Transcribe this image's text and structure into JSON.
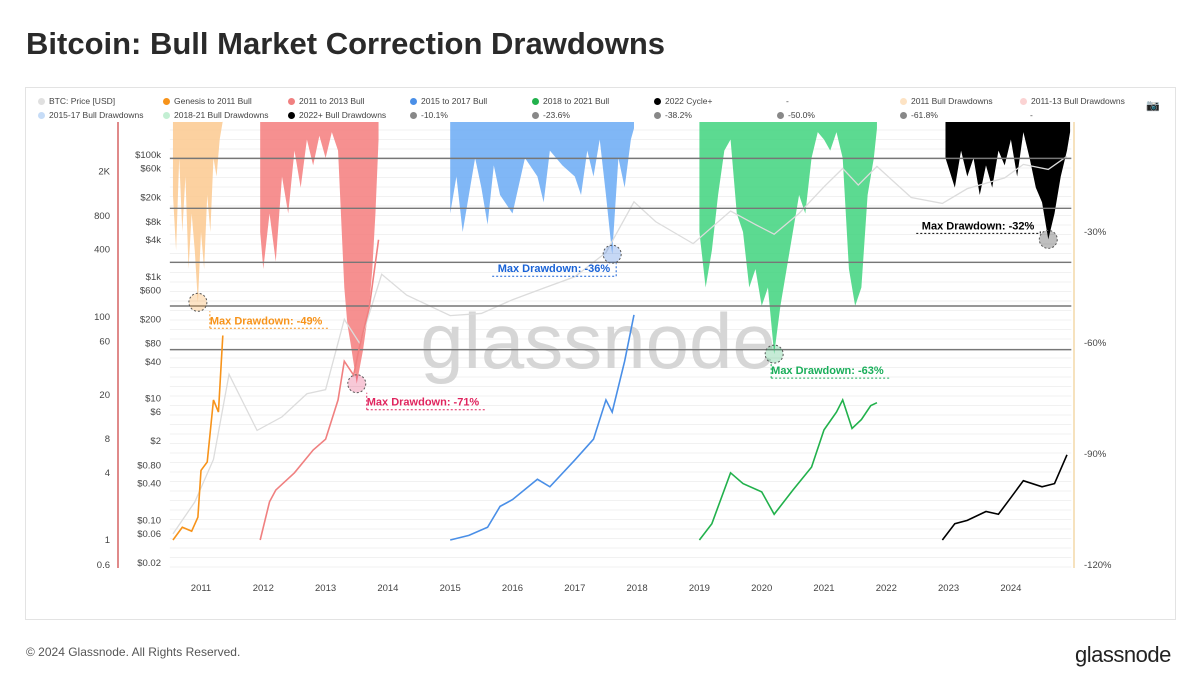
{
  "title": "Bitcoin: Bull Market Correction Drawdowns",
  "footer": "© 2024 Glassnode. All Rights Reserved.",
  "logo": "glassnode",
  "watermark": "glassnode",
  "camera_icon": "camera-icon",
  "legend": [
    {
      "label": "BTC: Price [USD]",
      "color": "#e0e0e0"
    },
    {
      "label": "Genesis to 2011 Bull",
      "color": "#f7931a"
    },
    {
      "label": "2011 to 2013 Bull",
      "color": "#f08080"
    },
    {
      "label": "2015 to 2017 Bull",
      "color": "#4a8fe7"
    },
    {
      "label": "2018 to 2021 Bull",
      "color": "#22b14c"
    },
    {
      "label": "2022 Cycle+",
      "color": "#000000"
    },
    {
      "label": "-",
      "color": ""
    },
    {
      "label": "2011 Bull Drawdowns",
      "color": "#fde3c4"
    },
    {
      "label": "2011-13 Bull Drawdowns",
      "color": "#fbd3d3"
    },
    {
      "label": "2015-17 Bull Drawdowns",
      "color": "#c6dcf7"
    },
    {
      "label": "2018-21 Bull Drawdowns",
      "color": "#c3efd3"
    },
    {
      "label": "2022+ Bull Drawdowns",
      "color": "#000000"
    },
    {
      "label": "-10.1%",
      "color": "#888888"
    },
    {
      "label": "-23.6%",
      "color": "#888888"
    },
    {
      "label": "-38.2%",
      "color": "#888888"
    },
    {
      "label": "-50.0%",
      "color": "#888888"
    },
    {
      "label": "-61.8%",
      "color": "#888888"
    },
    {
      "label": "-",
      "color": ""
    }
  ],
  "chart_data": {
    "type": "line",
    "title": "Bitcoin: Bull Market Correction Drawdowns",
    "x_ticks": [
      "2011",
      "2012",
      "2013",
      "2014",
      "2015",
      "2016",
      "2017",
      "2018",
      "2019",
      "2020",
      "2021",
      "2022",
      "2023",
      "2024"
    ],
    "x_range": [
      2010.5,
      2024.97
    ],
    "left_axis_multiple": {
      "scale": "log",
      "ticks": [
        "2K",
        "800",
        "400",
        "100",
        "60",
        "20",
        "8",
        "4",
        "1",
        "0.6"
      ],
      "tick_values": [
        2000,
        800,
        400,
        100,
        60,
        20,
        8,
        4,
        1,
        0.6
      ]
    },
    "price_axis": {
      "scale": "log",
      "ticks": [
        "$100k",
        "$60k",
        "$20k",
        "$8k",
        "$4k",
        "$1k",
        "$600",
        "$200",
        "$80",
        "$40",
        "$10",
        "$6",
        "$2",
        "$0.80",
        "$0.40",
        "$0.10",
        "$0.06",
        "$0.02"
      ],
      "tick_values": [
        100000,
        60000,
        20000,
        8000,
        4000,
        1000,
        600,
        200,
        80,
        40,
        10,
        6,
        2,
        0.8,
        0.4,
        0.1,
        0.06,
        0.02
      ]
    },
    "right_axis": {
      "ticks": [
        "-30%",
        "-60%",
        "-90%",
        "-120%"
      ],
      "tick_values": [
        -30,
        -60,
        -90,
        -120
      ],
      "range": [
        0,
        -120
      ]
    },
    "fib_levels": [
      -10.1,
      -23.6,
      -38.2,
      -50.0,
      -61.8
    ],
    "btc_price": [
      [
        2010.55,
        0.06
      ],
      [
        2010.9,
        0.2
      ],
      [
        2011.2,
        1
      ],
      [
        2011.45,
        25
      ],
      [
        2011.9,
        3
      ],
      [
        2012.3,
        5
      ],
      [
        2012.7,
        12
      ],
      [
        2013.0,
        14
      ],
      [
        2013.3,
        200
      ],
      [
        2013.55,
        80
      ],
      [
        2013.9,
        1100
      ],
      [
        2014.3,
        500
      ],
      [
        2015.0,
        230
      ],
      [
        2015.5,
        250
      ],
      [
        2016.0,
        420
      ],
      [
        2016.5,
        650
      ],
      [
        2017.0,
        1000
      ],
      [
        2017.5,
        2500
      ],
      [
        2017.95,
        17000
      ],
      [
        2018.3,
        8000
      ],
      [
        2018.9,
        3500
      ],
      [
        2019.5,
        12000
      ],
      [
        2019.9,
        7200
      ],
      [
        2020.2,
        5000
      ],
      [
        2020.6,
        11000
      ],
      [
        2021.0,
        30000
      ],
      [
        2021.3,
        60000
      ],
      [
        2021.55,
        32000
      ],
      [
        2021.85,
        65000
      ],
      [
        2022.4,
        20000
      ],
      [
        2022.9,
        16000
      ],
      [
        2023.3,
        28000
      ],
      [
        2023.9,
        42000
      ],
      [
        2024.2,
        70000
      ],
      [
        2024.6,
        58000
      ],
      [
        2024.9,
        95000
      ]
    ],
    "series": [
      {
        "name": "Genesis to 2011 Bull",
        "color": "#f7931a",
        "points": [
          [
            2010.55,
            1
          ],
          [
            2010.7,
            1.3
          ],
          [
            2010.85,
            1.2
          ],
          [
            2010.95,
            1.6
          ],
          [
            2011.0,
            4.2
          ],
          [
            2011.1,
            5
          ],
          [
            2011.2,
            18
          ],
          [
            2011.28,
            14
          ],
          [
            2011.35,
            68
          ]
        ]
      },
      {
        "name": "2011 to 2013 Bull",
        "color": "#f08080",
        "points": [
          [
            2011.95,
            1
          ],
          [
            2012.1,
            2.2
          ],
          [
            2012.2,
            2.8
          ],
          [
            2012.5,
            4
          ],
          [
            2012.8,
            6.4
          ],
          [
            2013.0,
            8
          ],
          [
            2013.2,
            18
          ],
          [
            2013.3,
            40
          ],
          [
            2013.45,
            30
          ],
          [
            2013.55,
            56
          ],
          [
            2013.7,
            120
          ],
          [
            2013.85,
            490
          ]
        ]
      },
      {
        "name": "2015 to 2017 Bull",
        "color": "#4a8fe7",
        "points": [
          [
            2015.0,
            1
          ],
          [
            2015.3,
            1.1
          ],
          [
            2015.6,
            1.3
          ],
          [
            2015.8,
            2
          ],
          [
            2016.0,
            2.3
          ],
          [
            2016.4,
            3.5
          ],
          [
            2016.6,
            3
          ],
          [
            2017.0,
            5.2
          ],
          [
            2017.3,
            8
          ],
          [
            2017.5,
            18
          ],
          [
            2017.6,
            14
          ],
          [
            2017.8,
            40
          ],
          [
            2017.95,
            104
          ]
        ]
      },
      {
        "name": "2018 to 2021 Bull",
        "color": "#22b14c",
        "points": [
          [
            2019.0,
            1
          ],
          [
            2019.2,
            1.4
          ],
          [
            2019.5,
            4
          ],
          [
            2019.7,
            3.2
          ],
          [
            2020.0,
            2.7
          ],
          [
            2020.2,
            1.7
          ],
          [
            2020.5,
            2.8
          ],
          [
            2020.8,
            4.5
          ],
          [
            2021.0,
            9.7
          ],
          [
            2021.2,
            14
          ],
          [
            2021.3,
            18
          ],
          [
            2021.45,
            10
          ],
          [
            2021.6,
            12
          ],
          [
            2021.75,
            16
          ],
          [
            2021.85,
            17
          ]
        ]
      },
      {
        "name": "2022 Cycle+",
        "color": "#000000",
        "points": [
          [
            2022.9,
            1
          ],
          [
            2023.1,
            1.4
          ],
          [
            2023.3,
            1.5
          ],
          [
            2023.6,
            1.8
          ],
          [
            2023.8,
            1.7
          ],
          [
            2024.0,
            2.4
          ],
          [
            2024.2,
            3.4
          ],
          [
            2024.5,
            3
          ],
          [
            2024.7,
            3.2
          ],
          [
            2024.9,
            5.8
          ]
        ]
      }
    ],
    "drawdowns": [
      {
        "name": "2011 Bull Drawdowns",
        "color": "#fbc98f",
        "points": [
          [
            2010.55,
            -20
          ],
          [
            2010.6,
            -35
          ],
          [
            2010.65,
            -10
          ],
          [
            2010.7,
            -30
          ],
          [
            2010.75,
            -15
          ],
          [
            2010.8,
            -40
          ],
          [
            2010.85,
            -25
          ],
          [
            2010.9,
            -35
          ],
          [
            2010.95,
            -49
          ],
          [
            2011.0,
            -30
          ],
          [
            2011.05,
            -40
          ],
          [
            2011.1,
            -20
          ],
          [
            2011.15,
            -30
          ],
          [
            2011.2,
            -10
          ],
          [
            2011.25,
            -15
          ],
          [
            2011.3,
            -5
          ],
          [
            2011.35,
            0
          ]
        ]
      },
      {
        "name": "2011-13 Bull Drawdowns",
        "color": "#f47c7c",
        "points": [
          [
            2011.95,
            -30
          ],
          [
            2012.0,
            -40
          ],
          [
            2012.1,
            -25
          ],
          [
            2012.2,
            -38
          ],
          [
            2012.3,
            -15
          ],
          [
            2012.4,
            -25
          ],
          [
            2012.5,
            -8
          ],
          [
            2012.6,
            -18
          ],
          [
            2012.7,
            -5
          ],
          [
            2012.8,
            -12
          ],
          [
            2012.9,
            -4
          ],
          [
            2013.0,
            -10
          ],
          [
            2013.1,
            -3
          ],
          [
            2013.2,
            -8
          ],
          [
            2013.3,
            -45
          ],
          [
            2013.35,
            -55
          ],
          [
            2013.4,
            -60
          ],
          [
            2013.5,
            -71
          ],
          [
            2013.6,
            -62
          ],
          [
            2013.7,
            -50
          ],
          [
            2013.75,
            -40
          ],
          [
            2013.8,
            -25
          ],
          [
            2013.85,
            -5
          ]
        ]
      },
      {
        "name": "2015-17 Bull Drawdowns",
        "color": "#6aaaf5",
        "points": [
          [
            2015.0,
            -25
          ],
          [
            2015.1,
            -15
          ],
          [
            2015.2,
            -30
          ],
          [
            2015.3,
            -20
          ],
          [
            2015.4,
            -10
          ],
          [
            2015.5,
            -18
          ],
          [
            2015.6,
            -28
          ],
          [
            2015.7,
            -12
          ],
          [
            2015.8,
            -20
          ],
          [
            2016.0,
            -25
          ],
          [
            2016.2,
            -10
          ],
          [
            2016.4,
            -15
          ],
          [
            2016.5,
            -22
          ],
          [
            2016.6,
            -8
          ],
          [
            2016.8,
            -12
          ],
          [
            2017.0,
            -15
          ],
          [
            2017.1,
            -20
          ],
          [
            2017.2,
            -8
          ],
          [
            2017.3,
            -15
          ],
          [
            2017.4,
            -5
          ],
          [
            2017.5,
            -20
          ],
          [
            2017.6,
            -36
          ],
          [
            2017.7,
            -10
          ],
          [
            2017.8,
            -18
          ],
          [
            2017.9,
            -5
          ],
          [
            2017.95,
            -2
          ]
        ]
      },
      {
        "name": "2018-21 Bull Drawdowns",
        "color": "#3fd47e",
        "points": [
          [
            2019.0,
            -30
          ],
          [
            2019.1,
            -45
          ],
          [
            2019.2,
            -35
          ],
          [
            2019.3,
            -20
          ],
          [
            2019.4,
            -8
          ],
          [
            2019.5,
            -5
          ],
          [
            2019.6,
            -25
          ],
          [
            2019.7,
            -30
          ],
          [
            2019.8,
            -45
          ],
          [
            2019.9,
            -40
          ],
          [
            2020.0,
            -50
          ],
          [
            2020.1,
            -45
          ],
          [
            2020.2,
            -63
          ],
          [
            2020.3,
            -50
          ],
          [
            2020.4,
            -40
          ],
          [
            2020.5,
            -30
          ],
          [
            2020.6,
            -20
          ],
          [
            2020.7,
            -25
          ],
          [
            2020.8,
            -10
          ],
          [
            2020.9,
            -3
          ],
          [
            2021.0,
            -5
          ],
          [
            2021.1,
            -8
          ],
          [
            2021.2,
            -3
          ],
          [
            2021.3,
            -10
          ],
          [
            2021.4,
            -40
          ],
          [
            2021.5,
            -50
          ],
          [
            2021.6,
            -45
          ],
          [
            2021.7,
            -20
          ],
          [
            2021.8,
            -10
          ],
          [
            2021.85,
            -2
          ]
        ]
      },
      {
        "name": "2022+ Bull Drawdowns",
        "color": "#000000",
        "points": [
          [
            2022.95,
            -10
          ],
          [
            2023.1,
            -18
          ],
          [
            2023.2,
            -8
          ],
          [
            2023.3,
            -15
          ],
          [
            2023.4,
            -10
          ],
          [
            2023.5,
            -20
          ],
          [
            2023.6,
            -12
          ],
          [
            2023.7,
            -18
          ],
          [
            2023.8,
            -8
          ],
          [
            2023.9,
            -12
          ],
          [
            2024.0,
            -5
          ],
          [
            2024.1,
            -15
          ],
          [
            2024.2,
            -3
          ],
          [
            2024.3,
            -10
          ],
          [
            2024.4,
            -18
          ],
          [
            2024.5,
            -22
          ],
          [
            2024.6,
            -32
          ],
          [
            2024.7,
            -25
          ],
          [
            2024.8,
            -15
          ],
          [
            2024.9,
            -8
          ],
          [
            2024.95,
            -3
          ]
        ]
      }
    ],
    "annotations": [
      {
        "label": "Max Drawdown: -49%",
        "x": 2010.95,
        "y": -49,
        "color": "#f7931a"
      },
      {
        "label": "Max Drawdown: -71%",
        "x": 2013.5,
        "y": -71,
        "color": "#e0245e"
      },
      {
        "label": "Max Drawdown: -36%",
        "x": 2017.6,
        "y": -36,
        "color": "#1a63d6"
      },
      {
        "label": "Max Drawdown: -63%",
        "x": 2020.2,
        "y": -63,
        "color": "#1aae5a"
      },
      {
        "label": "Max Drawdown: -32%",
        "x": 2024.6,
        "y": -32,
        "color": "#000000"
      }
    ]
  }
}
